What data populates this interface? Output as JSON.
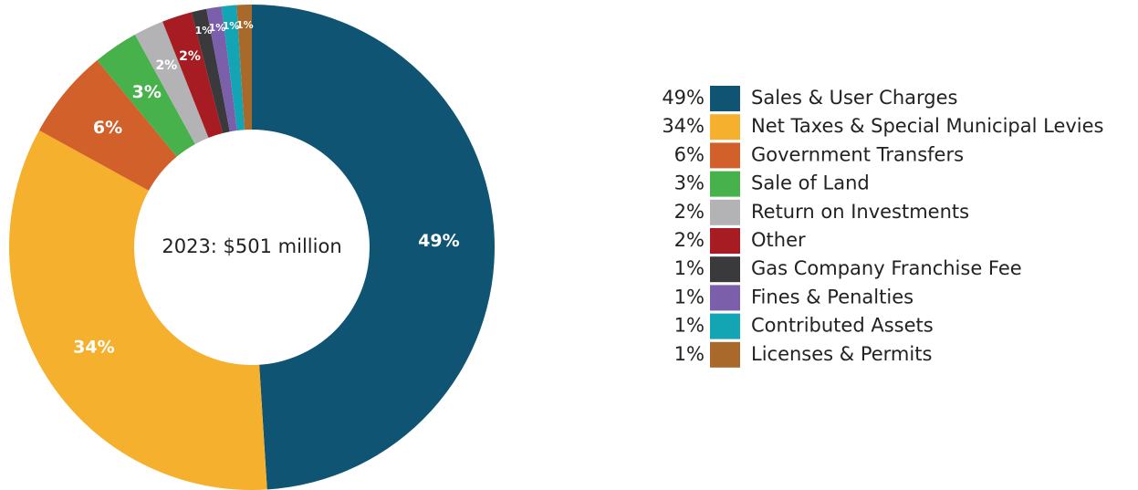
{
  "chart_data": {
    "type": "pie",
    "hole": true,
    "center_label": "2023: $501 million",
    "categories": [
      "Sales & User Charges",
      "Net Taxes & Special Municipal Levies",
      "Government Transfers",
      "Sale of Land",
      "Return on Investments",
      "Other",
      "Gas Company Franchise Fee",
      "Fines & Penalties",
      "Contributed Assets",
      "Licenses & Permits"
    ],
    "values": [
      49,
      34,
      6,
      3,
      2,
      2,
      1,
      1,
      1,
      1
    ],
    "value_labels": [
      "49%",
      "34%",
      "6%",
      "3%",
      "2%",
      "2%",
      "1%",
      "1%",
      "1%",
      "1%"
    ],
    "colors": [
      "#0f5472",
      "#f5b02e",
      "#d2602a",
      "#47b14b",
      "#b3b3b5",
      "#a71c23",
      "#3a3a3c",
      "#7b5fab",
      "#14a5b5",
      "#a8692a"
    ],
    "legend": "right"
  }
}
